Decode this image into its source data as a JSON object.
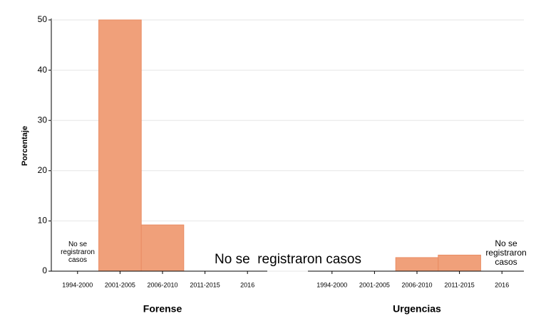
{
  "chart_data": {
    "type": "bar",
    "ylabel": "Porcentaje",
    "ylim": [
      0,
      50
    ],
    "yticks": [
      0,
      10,
      20,
      30,
      40,
      50
    ],
    "grid": true,
    "color": "#f0a07a",
    "panels": [
      {
        "title": "Forense",
        "categories": [
          "1994-2000",
          "2001-2005",
          "2006-2010",
          "2011-2015",
          "2016"
        ],
        "values": [
          null,
          50,
          9.2,
          null,
          null
        ],
        "annotations": [
          "No se registraron casos",
          "No se  registraron casos"
        ]
      },
      {
        "title": "Urgencias",
        "categories": [
          "1994-2000",
          "2001-2005",
          "2006-2010",
          "2011-2015",
          "2016"
        ],
        "values": [
          null,
          null,
          2.7,
          3.2,
          null
        ],
        "annotations": [
          "No se registraron casos"
        ]
      }
    ]
  }
}
